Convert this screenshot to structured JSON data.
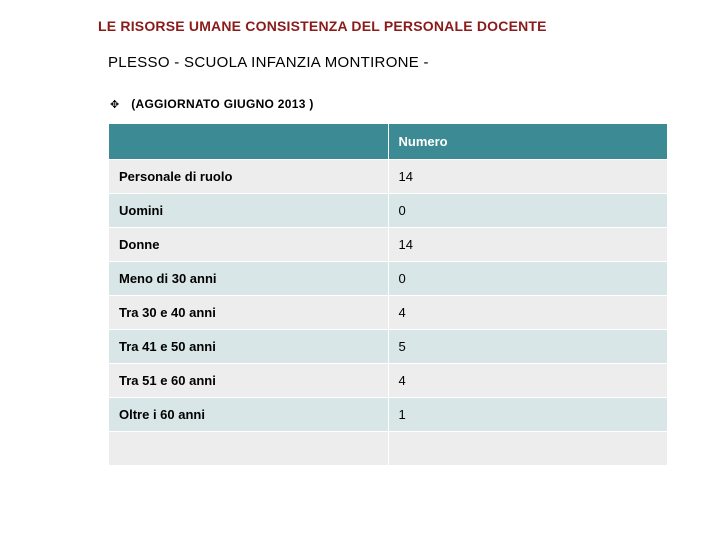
{
  "title": {
    "text": "LE RISORSE UMANE CONSISTENZA DEL PERSONALE DOCENTE",
    "color": "#8b1a1a",
    "fontsize": 14
  },
  "subtitle": {
    "text": "PLESSO -  SCUOLA INFANZIA MONTIRONE -",
    "fontsize": 15
  },
  "bullet": {
    "glyph": "✥",
    "text": "(AGGIORNATO  GIUGNO 2013 )",
    "fontsize": 12
  },
  "table": {
    "type": "table",
    "header_bg": "#3c8a94",
    "header_text_color": "#ffffff",
    "row_alt_colors": [
      "#ededed",
      "#d8e6e8"
    ],
    "border_color": "#ffffff",
    "columns": [
      {
        "label": "",
        "width_pct": 50
      },
      {
        "label": "Numero",
        "width_pct": 50
      }
    ],
    "rows": [
      {
        "label": "Personale di ruolo",
        "value": "14"
      },
      {
        "label": "Uomini",
        "value": "0"
      },
      {
        "label": "Donne",
        "value": "14"
      },
      {
        "label": "Meno di 30 anni",
        "value": "0"
      },
      {
        "label": "Tra 30 e 40 anni",
        "value": "4"
      },
      {
        "label": "Tra 41 e 50 anni",
        "value": "5"
      },
      {
        "label": "Tra 51 e 60 anni",
        "value": "4"
      },
      {
        "label": "Oltre i 60 anni",
        "value": "1"
      },
      {
        "label": "",
        "value": ""
      }
    ]
  }
}
